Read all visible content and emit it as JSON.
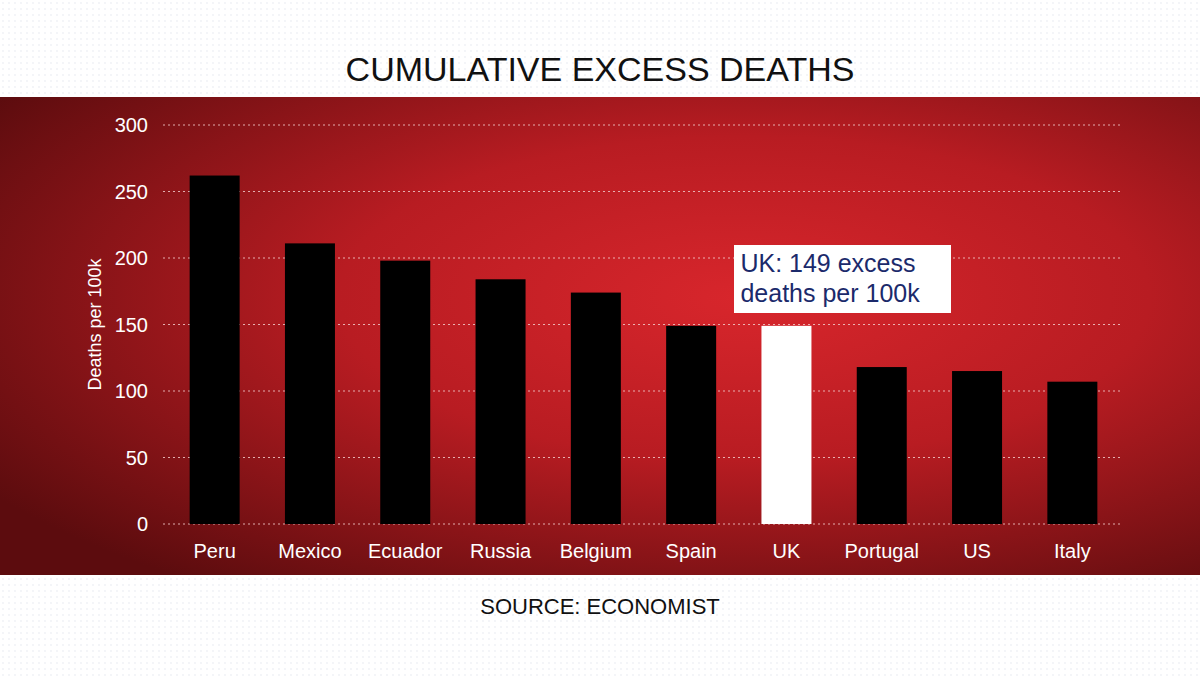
{
  "chart_data": {
    "type": "bar",
    "title": "CUMULATIVE EXCESS DEATHS",
    "y_label": "Deaths per 100k",
    "categories": [
      "Peru",
      "Mexico",
      "Ecuador",
      "Russia",
      "Belgium",
      "Spain",
      "UK",
      "Portugal",
      "US",
      "Italy"
    ],
    "values": [
      262,
      211,
      198,
      184,
      174,
      149,
      149,
      118,
      115,
      107
    ],
    "colors": [
      "#000000",
      "#000000",
      "#000000",
      "#000000",
      "#000000",
      "#000000",
      "#ffffff",
      "#000000",
      "#000000",
      "#000000"
    ],
    "ylim": [
      0,
      300
    ],
    "yticks": [
      0,
      50,
      100,
      150,
      200,
      250,
      300
    ],
    "grid": true,
    "annotation": "UK: 149 excess deaths per 100k",
    "source": "SOURCE: ECONOMIST"
  }
}
